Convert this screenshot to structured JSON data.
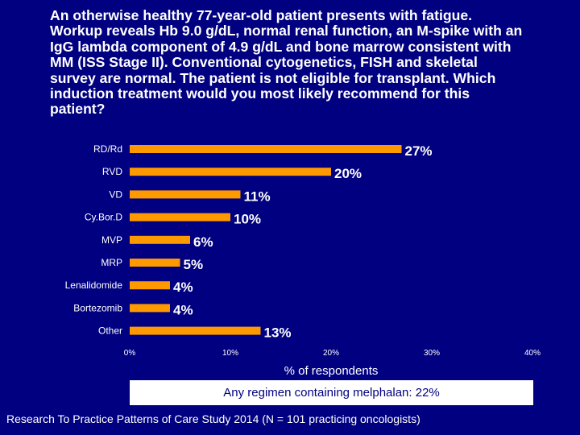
{
  "question": "An otherwise healthy 77-year-old patient presents with fatigue.\nWorkup reveals Hb 9.0 g/dL, normal renal function, an M-spike with an\nIgG lambda component of 4.9 g/dL and bone marrow consistent with\nMM (ISS Stage II). Conventional cytogenetics, FISH and skeletal\nsurvey are normal. The patient is not eligible for transplant. Which\ninduction treatment would you most likely recommend for this\npatient?",
  "chart_data": {
    "type": "bar",
    "orientation": "horizontal",
    "categories": [
      "RD/Rd",
      "RVD",
      "VD",
      "Cy.Bor.D",
      "MVP",
      "MRP",
      "Lenalidomide",
      "Bortezomib",
      "Other"
    ],
    "values": [
      27,
      20,
      11,
      10,
      6,
      5,
      4,
      4,
      13
    ],
    "data_labels": [
      "27%",
      "20%",
      "11%",
      "10%",
      "6%",
      "5%",
      "4%",
      "4%",
      "13%"
    ],
    "xlim": [
      0,
      40
    ],
    "xticks": [
      0,
      10,
      20,
      30,
      40
    ],
    "xtick_labels": [
      "0%",
      "10%",
      "20%",
      "30%",
      "40%"
    ],
    "xlabel": "% of respondents",
    "bar_color": "#ff9900"
  },
  "note": "Any regimen containing melphalan: 22%",
  "source": "Research To Practice Patterns of Care Study 2014 (N = 101 practicing oncologists)",
  "colors": {
    "background": "#000080",
    "text": "#ffffff",
    "bar": "#ff9900",
    "note_text": "#000080"
  }
}
